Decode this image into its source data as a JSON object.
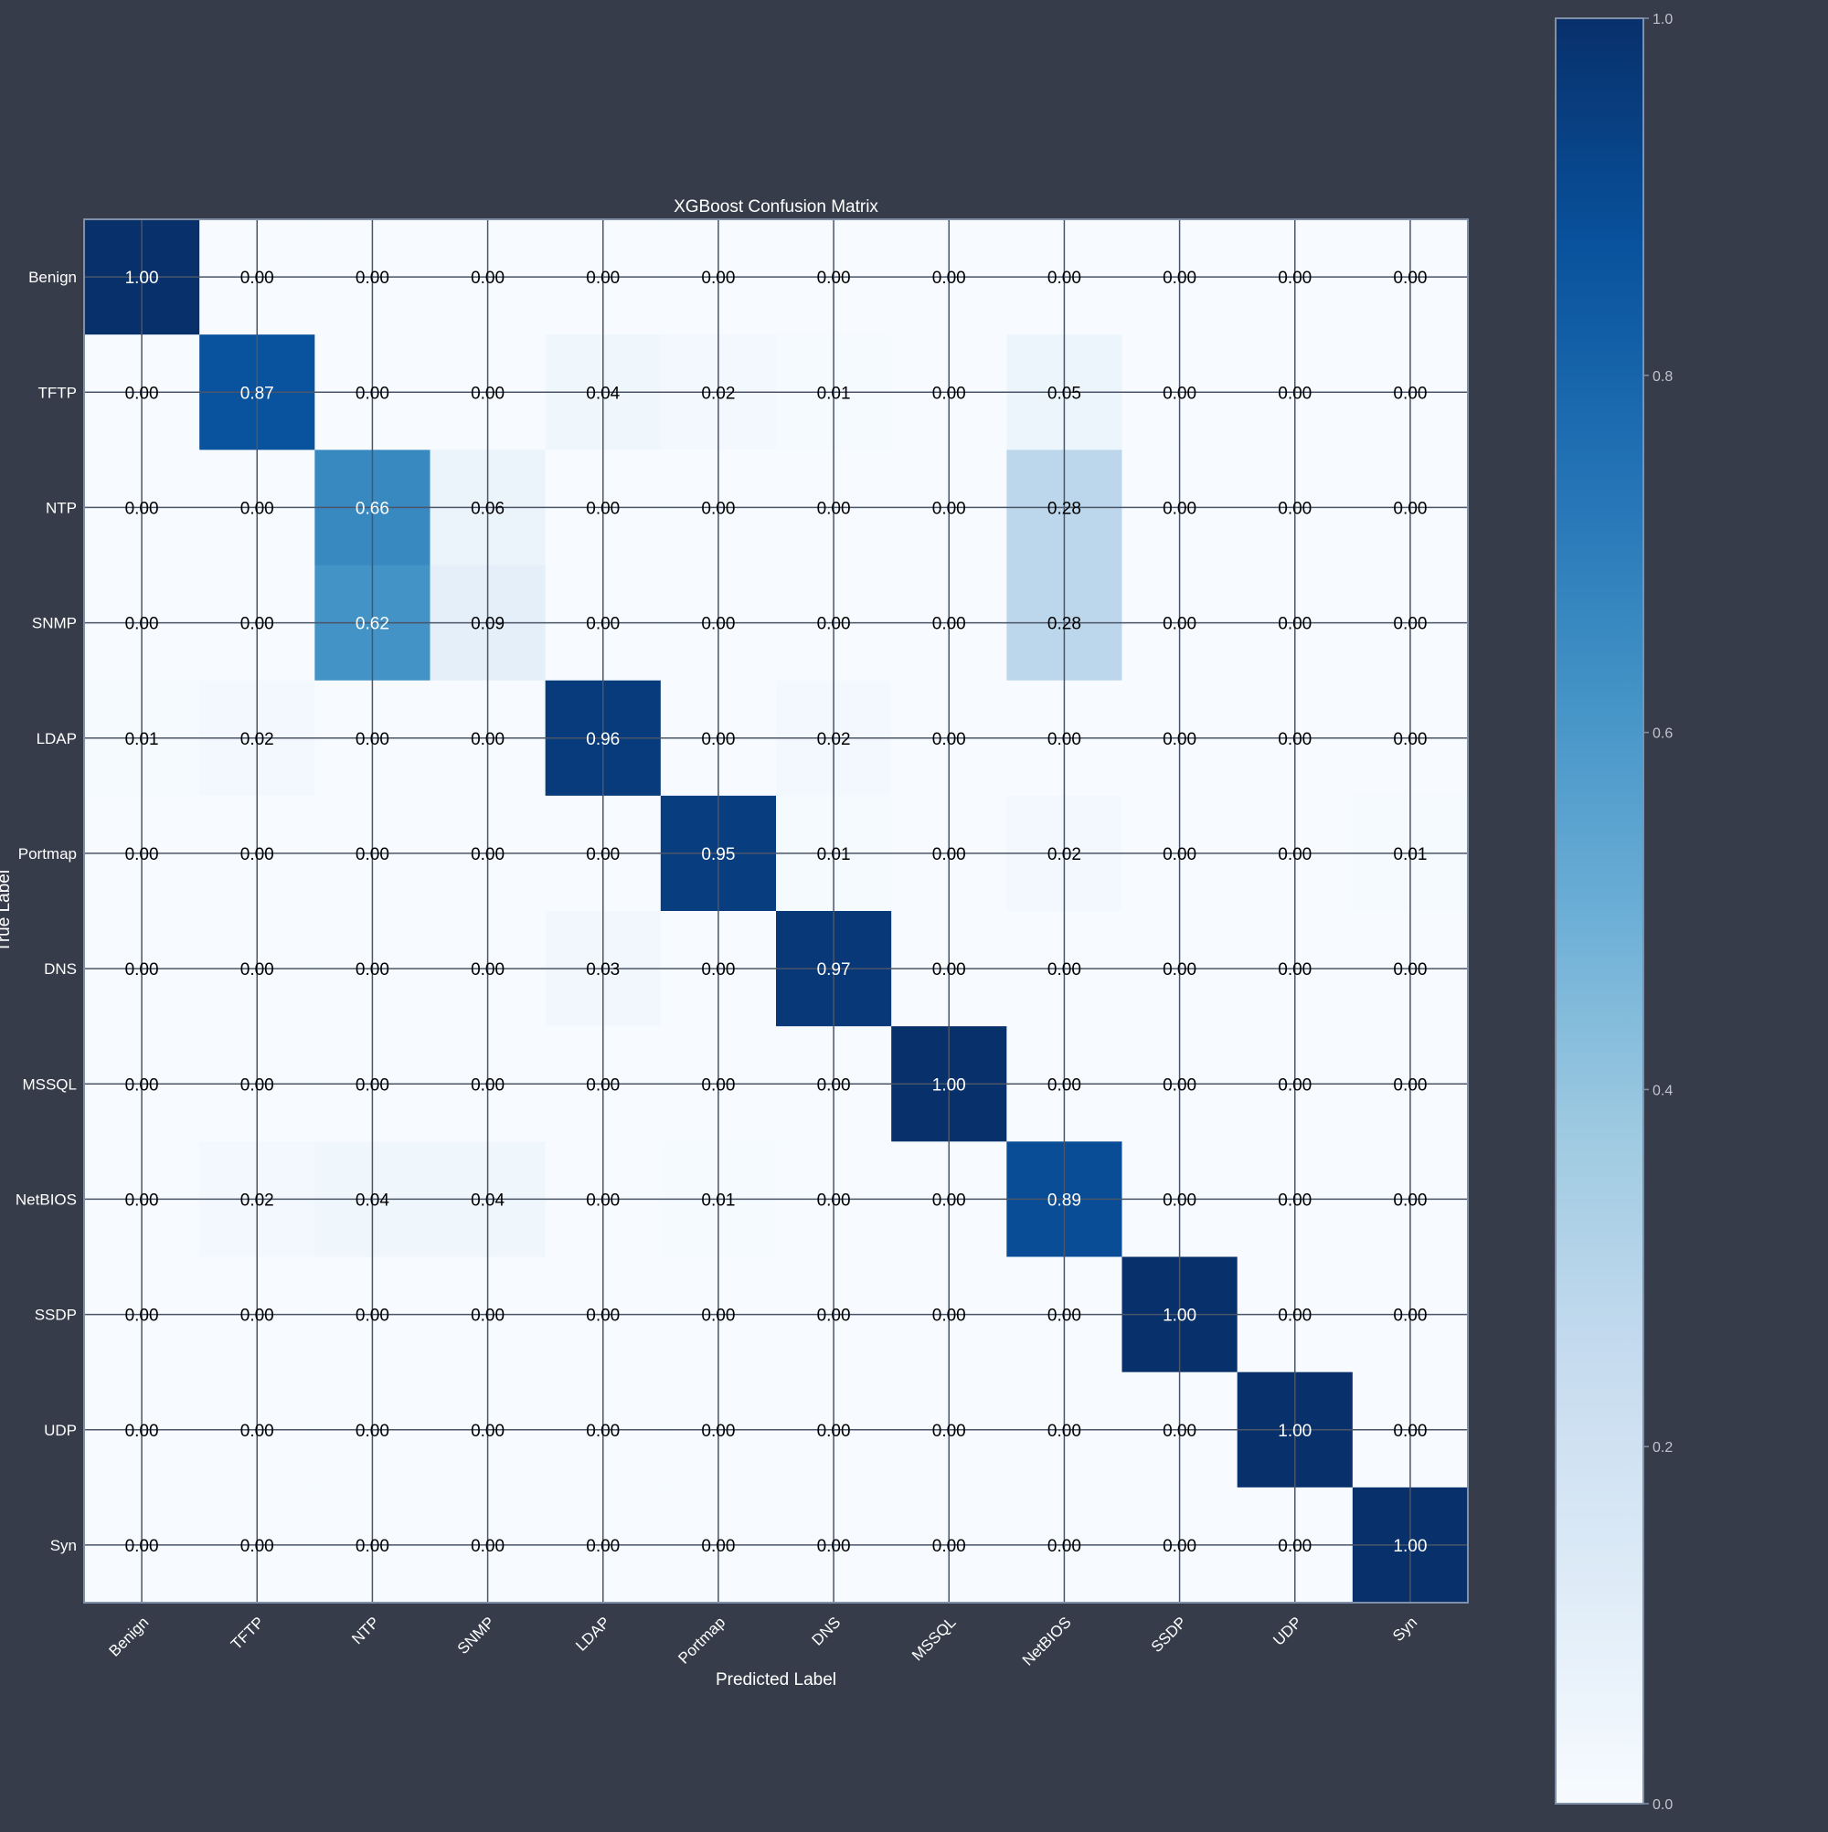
{
  "chart_data": {
    "type": "heatmap",
    "title": "XGBoost Confusion Matrix",
    "xlabel": "Predicted Label",
    "ylabel": "True Label",
    "x_categories": [
      "Benign",
      "TFTP",
      "NTP",
      "SNMP",
      "LDAP",
      "Portmap",
      "DNS",
      "MSSQL",
      "NetBIOS",
      "SSDP",
      "UDP",
      "Syn"
    ],
    "y_categories": [
      "Benign",
      "TFTP",
      "NTP",
      "SNMP",
      "LDAP",
      "Portmap",
      "DNS",
      "MSSQL",
      "NetBIOS",
      "SSDP",
      "UDP",
      "Syn"
    ],
    "values": [
      [
        1.0,
        0.0,
        0.0,
        0.0,
        0.0,
        0.0,
        0.0,
        0.0,
        0.0,
        0.0,
        0.0,
        0.0
      ],
      [
        0.0,
        0.87,
        0.0,
        0.0,
        0.04,
        0.02,
        0.01,
        0.0,
        0.05,
        0.0,
        0.0,
        0.0
      ],
      [
        0.0,
        0.0,
        0.66,
        0.06,
        0.0,
        0.0,
        0.0,
        0.0,
        0.28,
        0.0,
        0.0,
        0.0
      ],
      [
        0.0,
        0.0,
        0.62,
        0.09,
        0.0,
        0.0,
        0.0,
        0.0,
        0.28,
        0.0,
        0.0,
        0.0
      ],
      [
        0.01,
        0.02,
        0.0,
        0.0,
        0.96,
        0.0,
        0.02,
        0.0,
        0.0,
        0.0,
        0.0,
        0.0
      ],
      [
        0.0,
        0.0,
        0.0,
        0.0,
        0.0,
        0.95,
        0.01,
        0.0,
        0.02,
        0.0,
        0.0,
        0.01
      ],
      [
        0.0,
        0.0,
        0.0,
        0.0,
        0.03,
        0.0,
        0.97,
        0.0,
        0.0,
        0.0,
        0.0,
        0.0
      ],
      [
        0.0,
        0.0,
        0.0,
        0.0,
        0.0,
        0.0,
        0.0,
        1.0,
        0.0,
        0.0,
        0.0,
        0.0
      ],
      [
        0.0,
        0.02,
        0.04,
        0.04,
        0.0,
        0.01,
        0.0,
        0.0,
        0.89,
        0.0,
        0.0,
        0.0
      ],
      [
        0.0,
        0.0,
        0.0,
        0.0,
        0.0,
        0.0,
        0.0,
        0.0,
        0.0,
        1.0,
        0.0,
        0.0
      ],
      [
        0.0,
        0.0,
        0.0,
        0.0,
        0.0,
        0.0,
        0.0,
        0.0,
        0.0,
        0.0,
        1.0,
        0.0
      ],
      [
        0.0,
        0.0,
        0.0,
        0.0,
        0.0,
        0.0,
        0.0,
        0.0,
        0.0,
        0.0,
        0.0,
        1.0
      ]
    ],
    "colorbar": {
      "range": [
        0.0,
        1.0
      ],
      "ticks": [
        "0.0",
        "0.2",
        "0.4",
        "0.6",
        "0.8",
        "1.0"
      ],
      "colormap": "Blues"
    },
    "grid": true
  },
  "colors": {
    "background": "#363c4a",
    "frame": "#8090a8",
    "gridline": "#4a5568",
    "text_light": "#ffffff",
    "text_dark": "#000000",
    "tick_text": "#c0c4cc"
  }
}
